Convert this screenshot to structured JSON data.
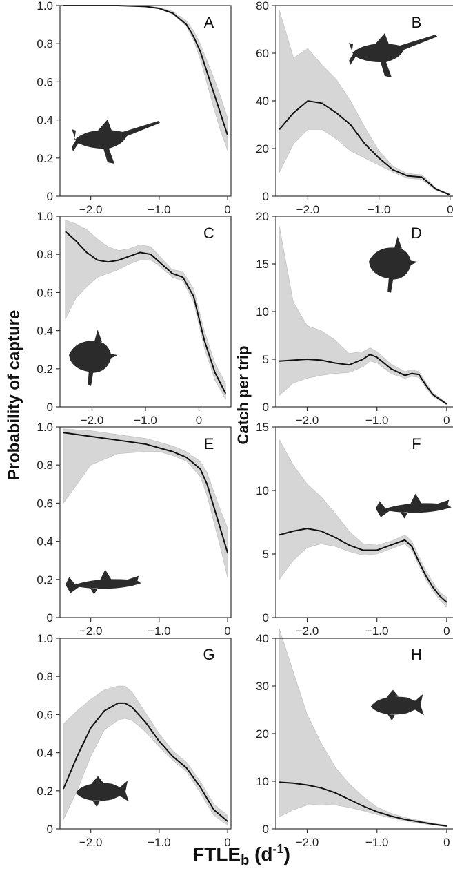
{
  "labels": {
    "ylabel_left": "Probability of capture",
    "ylabel_right": "Catch per trip",
    "xlabel_main": "FTLE",
    "xlabel_sub": "b",
    "xlabel_unit_open": " (d",
    "xlabel_unit_sup": "-1",
    "xlabel_unit_close": ")"
  },
  "colors": {
    "band": "#d6d6d6",
    "curve": "#111111",
    "silhouette": "#2b2b2b"
  },
  "chart_data": [
    {
      "panel": "A",
      "type": "line",
      "icon": "swordfish-icon",
      "xlim": [
        -2.45,
        0.05
      ],
      "ylim": [
        0,
        1.0
      ],
      "xticks": [
        -2.0,
        -1.0,
        0
      ],
      "xtick_labels": [
        "−2.0",
        "−1.0",
        "0"
      ],
      "yticks": [
        0,
        0.2,
        0.4,
        0.6,
        0.8,
        1.0
      ],
      "ytick_labels": [
        "0",
        "0.2",
        "0.4",
        "0.6",
        "0.8",
        "1.0"
      ],
      "x": [
        -2.4,
        -2.0,
        -1.6,
        -1.2,
        -1.0,
        -0.8,
        -0.6,
        -0.5,
        -0.4,
        -0.3,
        -0.2,
        -0.1,
        0.0
      ],
      "y": [
        1.0,
        1.0,
        1.0,
        0.995,
        0.985,
        0.96,
        0.9,
        0.84,
        0.76,
        0.65,
        0.54,
        0.43,
        0.32
      ],
      "lower": [
        1.0,
        1.0,
        1.0,
        0.995,
        0.985,
        0.955,
        0.89,
        0.82,
        0.72,
        0.59,
        0.46,
        0.34,
        0.24
      ],
      "upper": [
        1.0,
        1.0,
        1.0,
        0.998,
        0.99,
        0.97,
        0.92,
        0.87,
        0.8,
        0.71,
        0.62,
        0.52,
        0.41
      ]
    },
    {
      "panel": "B",
      "type": "line",
      "icon": "swordfish-icon",
      "xlim": [
        -2.45,
        0.05
      ],
      "ylim": [
        0,
        80
      ],
      "xticks": [
        -2.0,
        -1.0,
        0
      ],
      "xtick_labels": [
        "−2.0",
        "−1.0",
        "0"
      ],
      "yticks": [
        0,
        20,
        40,
        60,
        80
      ],
      "ytick_labels": [
        "0",
        "20",
        "40",
        "60",
        "80"
      ],
      "x": [
        -2.4,
        -2.2,
        -2.0,
        -1.8,
        -1.6,
        -1.4,
        -1.2,
        -1.0,
        -0.8,
        -0.6,
        -0.4,
        -0.2,
        0.0
      ],
      "y": [
        28,
        35,
        40,
        39,
        35,
        30,
        22,
        16,
        11,
        8.5,
        8,
        3,
        0.5
      ],
      "lower": [
        10,
        22,
        28,
        28,
        24,
        19,
        16,
        13,
        10,
        7.5,
        7,
        2.5,
        0.3
      ],
      "upper": [
        78,
        58,
        62,
        55,
        49,
        40,
        29,
        19,
        12.5,
        9.5,
        9,
        3.5,
        0.8
      ]
    },
    {
      "panel": "C",
      "type": "line",
      "icon": "sunfish-icon",
      "xlim": [
        -2.6,
        0.6
      ],
      "ylim": [
        0,
        1.0
      ],
      "xticks": [
        -2.0,
        -1.0,
        0
      ],
      "xtick_labels": [
        "−2.0",
        "−1.0",
        "0"
      ],
      "yticks": [
        0,
        0.2,
        0.4,
        0.6,
        0.8,
        1.0
      ],
      "ytick_labels": [
        "0",
        "0.2",
        "0.4",
        "0.6",
        "0.8",
        "1.0"
      ],
      "x": [
        -2.5,
        -2.3,
        -2.1,
        -1.9,
        -1.7,
        -1.5,
        -1.3,
        -1.1,
        -0.9,
        -0.7,
        -0.5,
        -0.3,
        -0.1,
        0.1,
        0.3,
        0.5
      ],
      "y": [
        0.92,
        0.87,
        0.81,
        0.77,
        0.76,
        0.77,
        0.79,
        0.81,
        0.8,
        0.75,
        0.7,
        0.68,
        0.58,
        0.35,
        0.18,
        0.07
      ],
      "lower": [
        0.46,
        0.57,
        0.63,
        0.68,
        0.7,
        0.72,
        0.75,
        0.77,
        0.77,
        0.73,
        0.68,
        0.66,
        0.55,
        0.31,
        0.14,
        0.04
      ],
      "upper": [
        0.98,
        0.96,
        0.93,
        0.88,
        0.84,
        0.82,
        0.83,
        0.85,
        0.84,
        0.78,
        0.72,
        0.71,
        0.62,
        0.4,
        0.23,
        0.12
      ]
    },
    {
      "panel": "D",
      "type": "line",
      "icon": "sunfish-icon",
      "xlim": [
        -2.45,
        0.1
      ],
      "ylim": [
        0,
        20
      ],
      "xticks": [
        -2.0,
        -1.0,
        0
      ],
      "xtick_labels": [
        "−2.0",
        "−1.0",
        "0"
      ],
      "yticks": [
        0,
        5,
        10,
        15,
        20
      ],
      "ytick_labels": [
        "0",
        "5",
        "10",
        "15",
        "20"
      ],
      "x": [
        -2.4,
        -2.2,
        -2.0,
        -1.8,
        -1.6,
        -1.4,
        -1.2,
        -1.1,
        -1.0,
        -0.8,
        -0.6,
        -0.5,
        -0.4,
        -0.3,
        -0.2,
        0.0
      ],
      "y": [
        4.8,
        4.9,
        5.0,
        4.9,
        4.6,
        4.4,
        5.0,
        5.5,
        5.2,
        4.0,
        3.3,
        3.5,
        3.4,
        2.3,
        1.3,
        0.3
      ],
      "lower": [
        1.2,
        2.5,
        3.0,
        3.3,
        3.5,
        3.6,
        4.2,
        4.8,
        4.6,
        3.5,
        3.0,
        3.2,
        3.1,
        2.0,
        1.1,
        0.2
      ],
      "upper": [
        19,
        11,
        8.5,
        8.0,
        7.0,
        5.6,
        5.8,
        6.2,
        5.8,
        4.5,
        3.7,
        3.9,
        3.7,
        2.6,
        1.5,
        0.4
      ]
    },
    {
      "panel": "E",
      "type": "line",
      "icon": "shark-icon",
      "xlim": [
        -2.45,
        0.05
      ],
      "ylim": [
        0,
        1.0
      ],
      "xticks": [
        -2.0,
        -1.0,
        0
      ],
      "xtick_labels": [
        "−2.0",
        "−1.0",
        "0"
      ],
      "yticks": [
        0,
        0.2,
        0.4,
        0.6,
        0.8,
        1.0
      ],
      "ytick_labels": [
        "0",
        "0.2",
        "0.4",
        "0.6",
        "0.8",
        "1.0"
      ],
      "x": [
        -2.4,
        -2.0,
        -1.6,
        -1.2,
        -1.0,
        -0.8,
        -0.6,
        -0.4,
        -0.3,
        -0.2,
        -0.1,
        0.0
      ],
      "y": [
        0.97,
        0.95,
        0.93,
        0.91,
        0.89,
        0.87,
        0.84,
        0.78,
        0.7,
        0.58,
        0.46,
        0.34
      ],
      "lower": [
        0.6,
        0.8,
        0.86,
        0.87,
        0.87,
        0.85,
        0.82,
        0.74,
        0.64,
        0.5,
        0.36,
        0.21
      ],
      "upper": [
        0.99,
        0.98,
        0.96,
        0.94,
        0.92,
        0.9,
        0.87,
        0.82,
        0.76,
        0.66,
        0.56,
        0.47
      ]
    },
    {
      "panel": "F",
      "type": "line",
      "icon": "shark-icon",
      "xlim": [
        -2.45,
        0.1
      ],
      "ylim": [
        0,
        15
      ],
      "xticks": [
        -2.0,
        -1.0,
        0
      ],
      "xtick_labels": [
        "−2.0",
        "−1.0",
        "0"
      ],
      "yticks": [
        0,
        5,
        10,
        15
      ],
      "ytick_labels": [
        "0",
        "5",
        "10",
        "15"
      ],
      "x": [
        -2.4,
        -2.2,
        -2.0,
        -1.8,
        -1.6,
        -1.4,
        -1.2,
        -1.0,
        -0.8,
        -0.6,
        -0.5,
        -0.4,
        -0.3,
        -0.2,
        -0.1,
        0.0
      ],
      "y": [
        6.5,
        6.8,
        7.0,
        6.8,
        6.3,
        5.7,
        5.3,
        5.3,
        5.7,
        6.1,
        5.6,
        4.4,
        3.3,
        2.4,
        1.7,
        1.2
      ],
      "lower": [
        3.0,
        4.5,
        5.5,
        5.8,
        5.6,
        5.2,
        4.9,
        5.0,
        5.4,
        5.8,
        5.3,
        4.1,
        3.0,
        2.1,
        1.4,
        0.8
      ],
      "upper": [
        14,
        12,
        10.5,
        9.5,
        8.2,
        6.8,
        5.8,
        5.7,
        6.0,
        6.5,
        6.0,
        4.8,
        3.7,
        2.8,
        2.0,
        1.6
      ]
    },
    {
      "panel": "G",
      "type": "line",
      "icon": "tuna-icon",
      "xlim": [
        -2.45,
        0.05
      ],
      "ylim": [
        0,
        1.0
      ],
      "xticks": [
        -2.0,
        -1.0,
        0
      ],
      "xtick_labels": [
        "−2.0",
        "−1.0",
        "0"
      ],
      "yticks": [
        0,
        0.2,
        0.4,
        0.6,
        0.8,
        1.0
      ],
      "ytick_labels": [
        "0",
        "0.2",
        "0.4",
        "0.6",
        "0.8",
        "1.0"
      ],
      "x": [
        -2.4,
        -2.2,
        -2.0,
        -1.8,
        -1.6,
        -1.5,
        -1.4,
        -1.2,
        -1.0,
        -0.8,
        -0.6,
        -0.4,
        -0.2,
        0.0
      ],
      "y": [
        0.21,
        0.38,
        0.53,
        0.62,
        0.66,
        0.66,
        0.64,
        0.56,
        0.46,
        0.38,
        0.32,
        0.22,
        0.1,
        0.04
      ],
      "lower": [
        0.05,
        0.2,
        0.38,
        0.52,
        0.57,
        0.58,
        0.57,
        0.51,
        0.43,
        0.36,
        0.3,
        0.19,
        0.07,
        0.02
      ],
      "upper": [
        0.55,
        0.62,
        0.68,
        0.73,
        0.75,
        0.75,
        0.72,
        0.61,
        0.5,
        0.41,
        0.35,
        0.25,
        0.13,
        0.07
      ]
    },
    {
      "panel": "H",
      "type": "line",
      "icon": "tuna-icon",
      "xlim": [
        -2.45,
        0.1
      ],
      "ylim": [
        0,
        40
      ],
      "xticks": [
        -2.0,
        -1.0,
        0
      ],
      "xtick_labels": [
        "−2.0",
        "−1.0",
        "0"
      ],
      "yticks": [
        0,
        10,
        20,
        30,
        40
      ],
      "ytick_labels": [
        "0",
        "10",
        "20",
        "30",
        "40"
      ],
      "x": [
        -2.4,
        -2.2,
        -2.0,
        -1.8,
        -1.6,
        -1.4,
        -1.2,
        -1.0,
        -0.8,
        -0.6,
        -0.4,
        -0.2,
        0.0
      ],
      "y": [
        9.8,
        9.6,
        9.2,
        8.6,
        7.6,
        6.2,
        4.8,
        3.6,
        2.7,
        2.0,
        1.5,
        1.0,
        0.6
      ],
      "lower": [
        2.5,
        4.0,
        5.0,
        5.2,
        5.0,
        4.5,
        3.8,
        3.0,
        2.3,
        1.7,
        1.2,
        0.8,
        0.5
      ],
      "upper": [
        42,
        33,
        24,
        18,
        13,
        9.5,
        6.8,
        4.6,
        3.3,
        2.4,
        1.8,
        1.2,
        0.8
      ]
    }
  ]
}
